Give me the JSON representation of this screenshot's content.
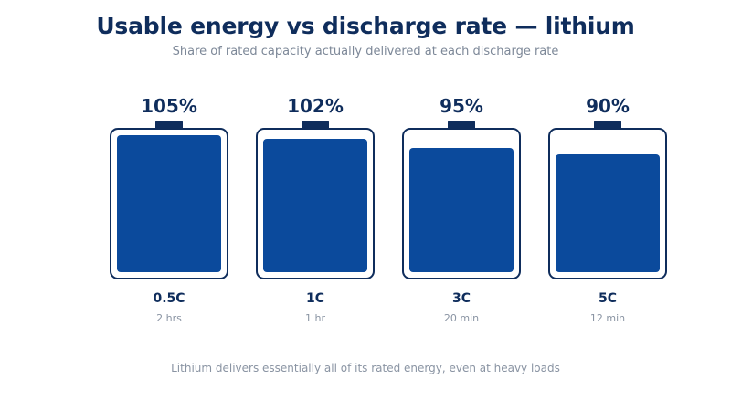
{
  "title": "Usable energy vs discharge rate — lithium",
  "subtitle": "Share of rated capacity actually delivered at each discharge rate",
  "footnote": "Lithium delivers essentially all of its rated energy, even at heavy loads",
  "colors": {
    "title": "#0f2d5c",
    "fill": "#0b4a9c",
    "outline": "#0f2d5c",
    "muted": "#8a94a3"
  },
  "chart_data": {
    "type": "bar",
    "categories": [
      "0.5C",
      "1C",
      "3C",
      "5C"
    ],
    "durations": [
      "2 hrs",
      "1 hr",
      "20 min",
      "12 min"
    ],
    "values": [
      105,
      102,
      95,
      90
    ],
    "labels": [
      "105%",
      "102%",
      "95%",
      "90%"
    ],
    "ylim": [
      0,
      105
    ]
  }
}
